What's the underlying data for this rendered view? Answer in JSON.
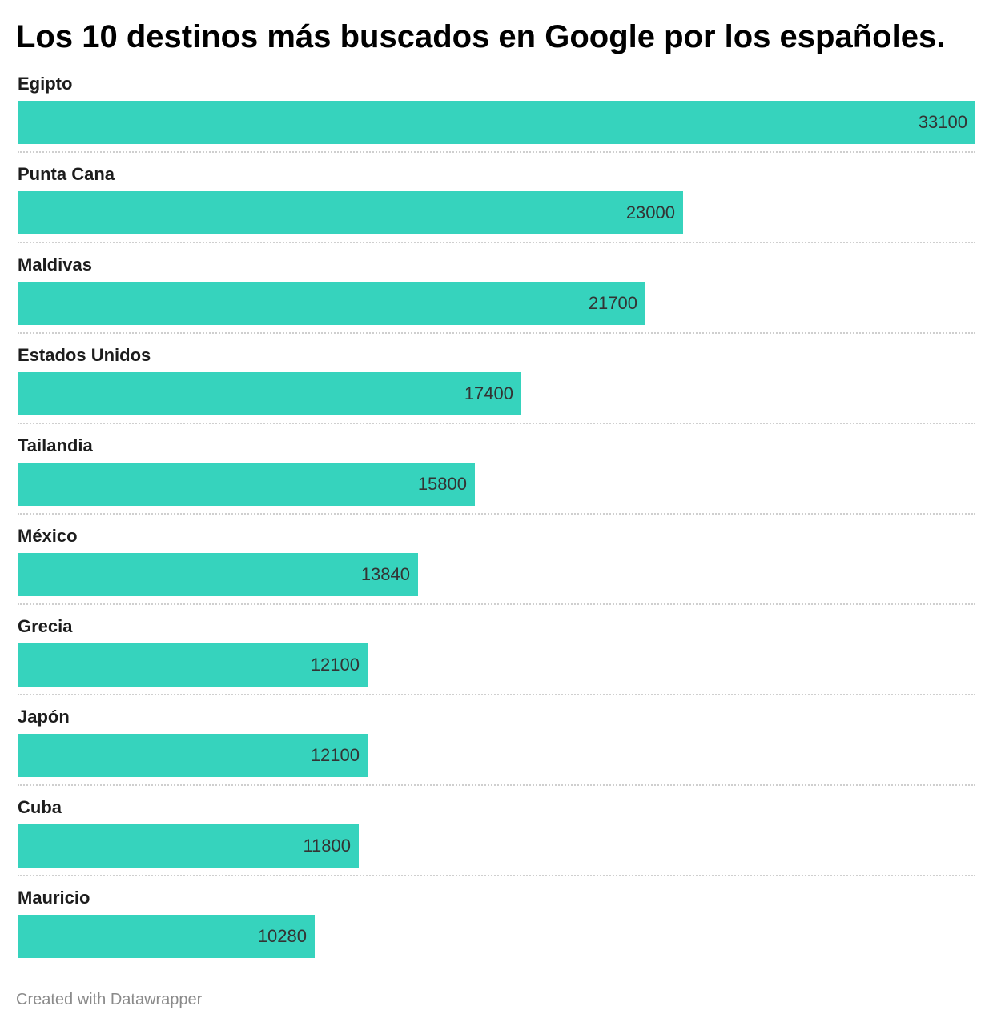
{
  "chart_data": {
    "type": "bar",
    "orientation": "horizontal",
    "title": "Los 10 destinos más buscados en Google por los españoles.",
    "categories": [
      "Egipto",
      "Punta Cana",
      "Maldivas",
      "Estados Unidos",
      "Tailandia",
      "México",
      "Grecia",
      "Japón",
      "Cuba",
      "Mauricio"
    ],
    "values": [
      33100,
      23000,
      21700,
      17400,
      15800,
      13840,
      12100,
      12100,
      11800,
      10280
    ],
    "xlim": [
      0,
      33100
    ],
    "grid": false,
    "legend": "none",
    "bar_color": "#36d3bd"
  },
  "footer": {
    "credit": "Created with Datawrapper"
  },
  "colors": {
    "bar": "#36d3bd",
    "separator": "#cfcfcf",
    "label_text": "#1d1d1d",
    "value_text": "#333333",
    "footer_text": "#8a8a8a"
  }
}
